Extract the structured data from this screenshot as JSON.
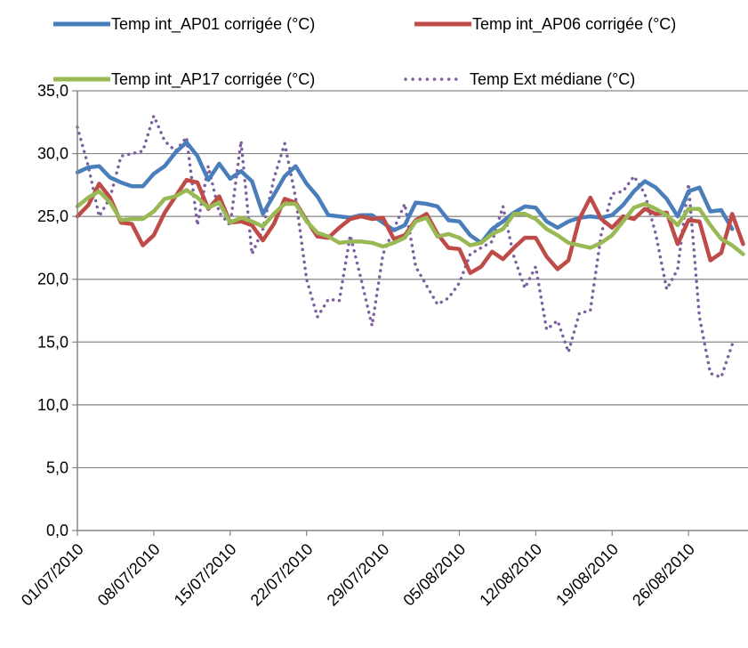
{
  "chart_data": {
    "type": "line",
    "xlabel": "",
    "ylabel": "",
    "ylim": [
      0,
      35
    ],
    "ytick_labels": [
      "0,0",
      "5,0",
      "10,0",
      "15,0",
      "20,0",
      "25,0",
      "30,0",
      "35,0"
    ],
    "xtick_labels": [
      "01/07/2010",
      "08/07/2010",
      "15/07/2010",
      "22/07/2010",
      "29/07/2010",
      "05/08/2010",
      "12/08/2010",
      "19/08/2010",
      "26/08/2010"
    ],
    "x_start": "01/07/2010",
    "x_end": "31/08/2010",
    "grid": "horizontal",
    "legend_position": "top",
    "series": [
      {
        "name": "Temp int_AP01 corrigée (°C)",
        "color": "#4a7ebb",
        "style": "solid",
        "values": [
          28.5,
          28.9,
          29.0,
          28.1,
          27.7,
          27.4,
          27.4,
          28.4,
          29.0,
          30.1,
          30.9,
          29.8,
          27.9,
          29.2,
          28.0,
          28.6,
          27.8,
          25.2,
          26.7,
          28.2,
          29.0,
          27.6,
          26.6,
          25.1,
          25.0,
          24.9,
          25.1,
          25.1,
          24.5,
          23.9,
          24.3,
          26.1,
          26.0,
          25.8,
          24.7,
          24.6,
          23.5,
          22.9,
          24.0,
          24.6,
          25.3,
          25.8,
          25.7,
          24.6,
          24.1,
          24.6,
          24.9,
          25.0,
          24.9,
          25.1,
          25.9,
          27.0,
          27.8,
          27.3,
          26.4,
          25.0,
          27.0,
          27.3,
          25.4,
          25.5,
          24.0
        ]
      },
      {
        "name": "Temp int_AP06 corrigée (°C)",
        "color": "#be4b48",
        "style": "solid",
        "values": [
          25.0,
          25.9,
          27.6,
          26.5,
          24.5,
          24.4,
          22.7,
          23.5,
          25.3,
          26.6,
          27.9,
          27.7,
          25.6,
          26.6,
          24.5,
          24.6,
          24.3,
          23.1,
          24.4,
          26.4,
          26.1,
          24.7,
          23.4,
          23.3,
          24.1,
          24.8,
          25.0,
          24.8,
          24.9,
          23.2,
          23.5,
          24.7,
          25.2,
          23.6,
          22.5,
          22.4,
          20.5,
          21.0,
          22.2,
          21.6,
          22.5,
          23.3,
          23.3,
          21.8,
          20.8,
          21.5,
          24.8,
          26.5,
          24.8,
          24.1,
          25.0,
          24.8,
          25.6,
          25.2,
          25.3,
          22.8,
          24.7,
          24.6,
          21.5,
          22.1,
          25.2,
          22.8
        ]
      },
      {
        "name": "Temp int_AP17 corrigée (°C)",
        "color": "#98b954",
        "style": "solid",
        "values": [
          25.8,
          26.5,
          27.0,
          26.1,
          24.7,
          24.8,
          24.8,
          25.4,
          26.4,
          26.6,
          27.1,
          26.5,
          25.7,
          26.1,
          24.5,
          24.9,
          24.6,
          24.2,
          25.2,
          26.0,
          26.0,
          24.6,
          23.7,
          23.4,
          22.9,
          23.0,
          23.0,
          22.9,
          22.6,
          22.9,
          23.3,
          24.6,
          24.9,
          23.4,
          23.6,
          23.3,
          22.7,
          22.9,
          23.6,
          24.0,
          25.2,
          25.2,
          24.8,
          24.0,
          23.5,
          22.9,
          22.7,
          22.5,
          22.9,
          23.5,
          24.6,
          25.7,
          26.0,
          25.6,
          25.1,
          24.3,
          25.6,
          25.6,
          24.3,
          23.2,
          22.7,
          22.0
        ]
      },
      {
        "name": "Temp Ext médiane (°C)",
        "color": "#7d60a0",
        "style": "dotted",
        "values": [
          32.1,
          29.0,
          25.0,
          26.5,
          29.8,
          30.0,
          30.2,
          33.0,
          31.0,
          30.2,
          31.3,
          24.3,
          29.0,
          25.3,
          24.3,
          31.0,
          22.0,
          24.0,
          28.0,
          30.8,
          26.5,
          20.0,
          17.0,
          18.4,
          18.3,
          23.5,
          20.0,
          16.3,
          22.0,
          24.0,
          26.0,
          21.0,
          19.5,
          18.0,
          18.5,
          19.7,
          22.0,
          22.5,
          23.0,
          25.8,
          21.8,
          19.3,
          21.0,
          16.0,
          16.7,
          14.2,
          17.3,
          17.5,
          23.6,
          26.8,
          27.0,
          28.2,
          26.8,
          23.6,
          19.2,
          20.8,
          27.6,
          17.0,
          12.5,
          12.2,
          14.8
        ]
      }
    ]
  }
}
